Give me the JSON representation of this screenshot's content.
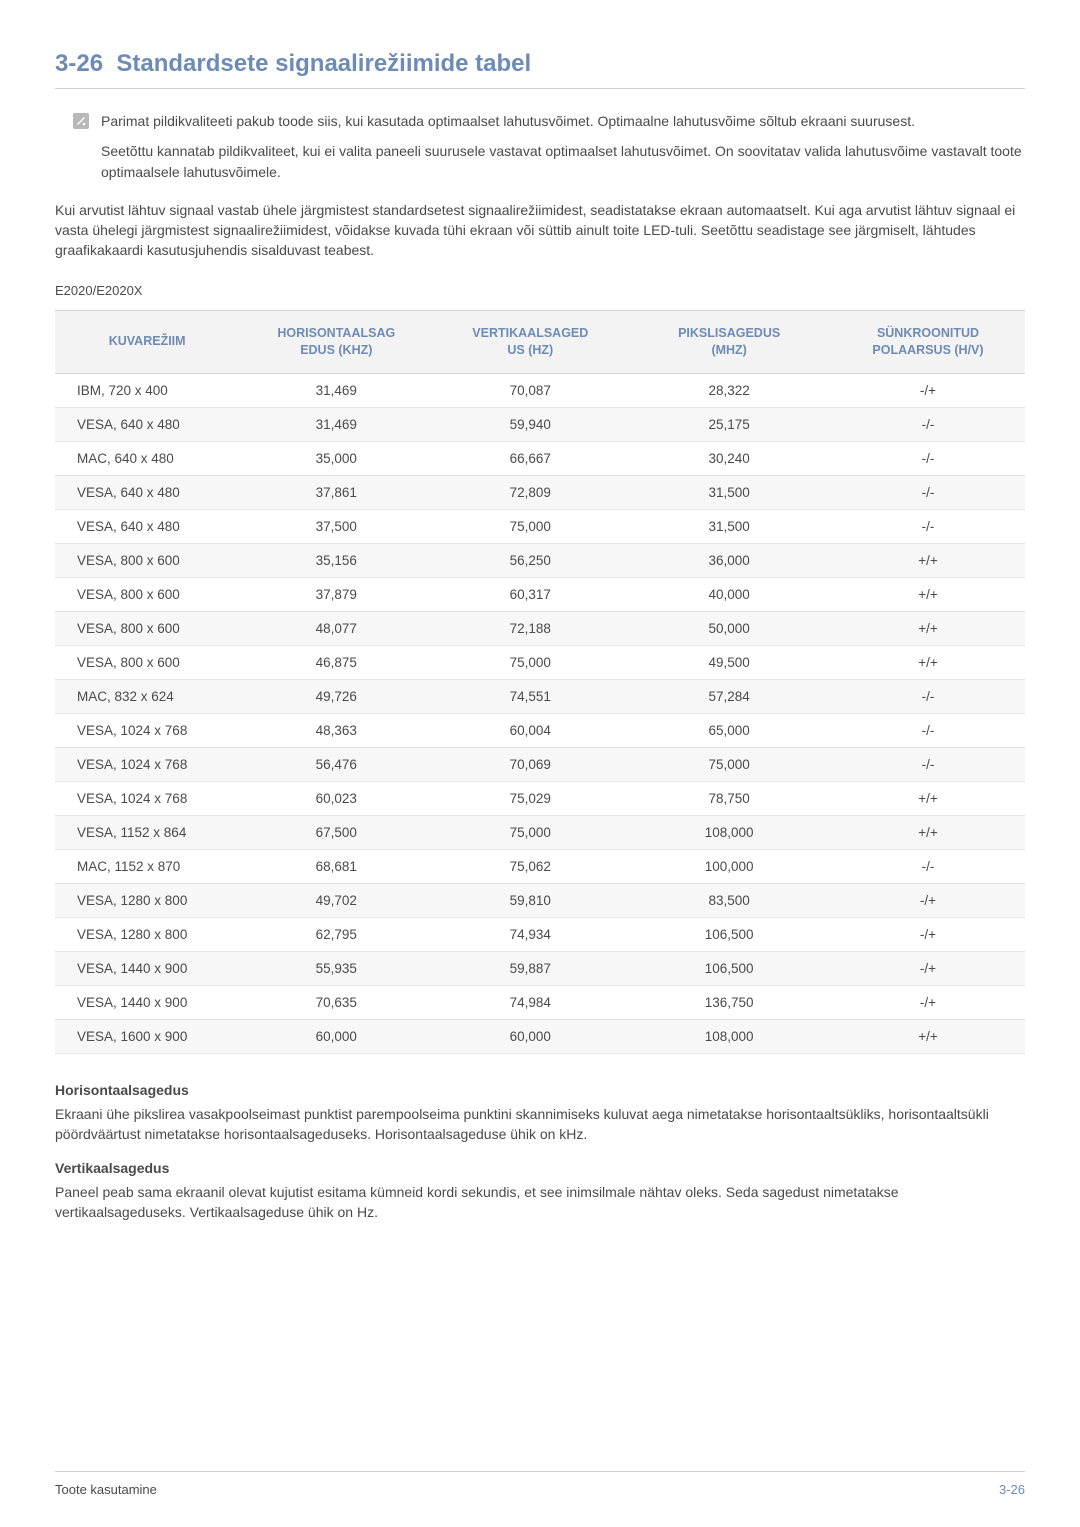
{
  "heading": {
    "number": "3-26",
    "title": "Standardsete signaalirežiimide tabel"
  },
  "note_icon": {
    "fill": "#b8b8b8",
    "glyph_fill": "#ffffff"
  },
  "notes": [
    "Parimat pildikvaliteeti pakub toode siis, kui kasutada optimaalset lahutusvõimet. Optimaalne lahutusvõime sõltub ekraani suurusest.",
    "Seetõttu kannatab pildikvaliteet, kui ei valita paneeli suurusele vastavat optimaalset lahutusvõimet. On soovitatav valida lahutusvõime vastavalt toote optimaalsele lahutusvõimele."
  ],
  "body_paragraph": "Kui arvutist lähtuv signaal vastab ühele järgmistest standardsetest signaalirežiimidest, seadistatakse ekraan automaatselt. Kui aga arvutist lähtuv signaal ei vasta ühelegi järgmistest signaalirežiimidest, võidakse kuvada tühi ekraan või süttib ainult toite LED-tuli. Seetõttu seadistage see järgmiselt, lähtudes graafikakaardi kasutusjuhendis sisalduvast teabest.",
  "model": "E2020/E2020X",
  "table": {
    "columns": [
      "KUVAREŽIIM",
      "HORISONTAALSAGEDUS (KHZ)",
      "VERTIKAALSAGEDUS (HZ)",
      "PIKSLISAGEDUS (MHZ)",
      "SÜNKROONITUD POLAARSUS (H/V)"
    ],
    "columns_split": [
      [
        "KUVAREŽIIM"
      ],
      [
        "HORISONTAALSAG",
        "EDUS (KHZ)"
      ],
      [
        "VERTIKAALSAGED",
        "US (HZ)"
      ],
      [
        "PIKSLISAGEDUS",
        "(MHZ)"
      ],
      [
        "SÜNKROONITUD",
        "POLAARSUS (H/V)"
      ]
    ],
    "header_bg": "#f3f3f3",
    "header_color": "#6e8bb5",
    "row_alt_bg": "#f7f7f7",
    "border_color": "#e4e4e4",
    "rows": [
      [
        "IBM, 720 x 400",
        "31,469",
        "70,087",
        "28,322",
        "-/+"
      ],
      [
        "VESA, 640 x 480",
        "31,469",
        "59,940",
        "25,175",
        "-/-"
      ],
      [
        "MAC, 640 x 480",
        "35,000",
        "66,667",
        "30,240",
        "-/-"
      ],
      [
        "VESA, 640 x 480",
        "37,861",
        "72,809",
        "31,500",
        "-/-"
      ],
      [
        "VESA, 640 x 480",
        "37,500",
        "75,000",
        "31,500",
        "-/-"
      ],
      [
        "VESA, 800 x 600",
        "35,156",
        "56,250",
        "36,000",
        "+/+"
      ],
      [
        "VESA, 800 x 600",
        "37,879",
        "60,317",
        "40,000",
        "+/+"
      ],
      [
        "VESA, 800 x 600",
        "48,077",
        "72,188",
        "50,000",
        "+/+"
      ],
      [
        "VESA, 800 x 600",
        "46,875",
        "75,000",
        "49,500",
        "+/+"
      ],
      [
        "MAC, 832 x 624",
        "49,726",
        "74,551",
        "57,284",
        "-/-"
      ],
      [
        "VESA, 1024 x 768",
        "48,363",
        "60,004",
        "65,000",
        "-/-"
      ],
      [
        "VESA, 1024 x 768",
        "56,476",
        "70,069",
        "75,000",
        "-/-"
      ],
      [
        "VESA, 1024 x 768",
        "60,023",
        "75,029",
        "78,750",
        "+/+"
      ],
      [
        "VESA, 1152 x 864",
        "67,500",
        "75,000",
        "108,000",
        "+/+"
      ],
      [
        "MAC, 1152 x 870",
        "68,681",
        "75,062",
        "100,000",
        "-/-"
      ],
      [
        "VESA, 1280 x 800",
        "49,702",
        "59,810",
        "83,500",
        "-/+"
      ],
      [
        "VESA, 1280 x 800",
        "62,795",
        "74,934",
        "106,500",
        "-/+"
      ],
      [
        "VESA, 1440 x 900",
        "55,935",
        "59,887",
        "106,500",
        "-/+"
      ],
      [
        "VESA, 1440 x 900",
        "70,635",
        "74,984",
        "136,750",
        "-/+"
      ],
      [
        "VESA, 1600 x 900",
        "60,000",
        "60,000",
        "108,000",
        "+/+"
      ]
    ]
  },
  "definitions": [
    {
      "title": "Horisontaalsagedus",
      "text": "Ekraani ühe pikslirea vasakpoolseimast punktist parempoolseima punktini skannimiseks kuluvat aega nimetatakse horisontaaltsükliks, horisontaaltsükli pöördväärtust nimetatakse horisontaalsageduseks. Horisontaalsageduse ühik on kHz."
    },
    {
      "title": "Vertikaalsagedus",
      "text": "Paneel peab sama ekraanil olevat kujutist esitama kümneid kordi sekundis, et see inimsilmale nähtav oleks. Seda sagedust nimetatakse vertikaalsageduseks. Vertikaalsageduse ühik on Hz."
    }
  ],
  "footer": {
    "left": "Toote kasutamine",
    "right": "3-26"
  }
}
